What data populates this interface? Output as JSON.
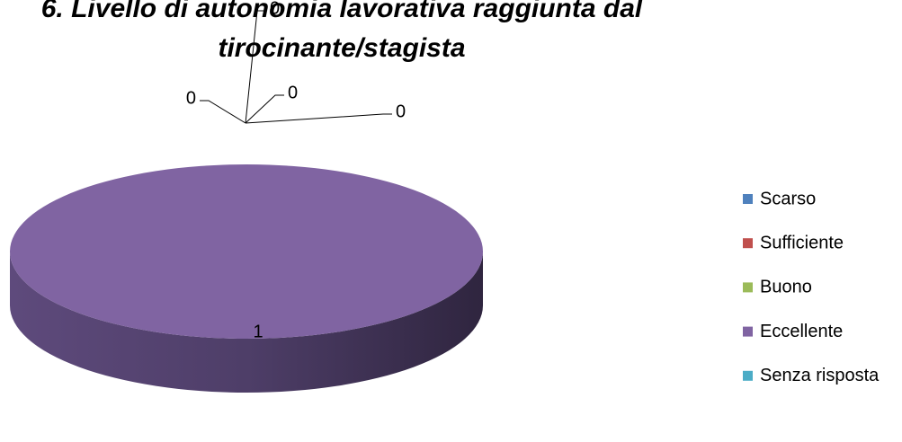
{
  "chart_data": {
    "type": "pie3d",
    "title": "6. Livello di autonomia lavorativa raggiunta dal tirocinante/stagista",
    "categories": [
      "Scarso",
      "Sufficiente",
      "Buono",
      "Eccellente",
      "Senza risposta"
    ],
    "values": [
      0,
      0,
      0,
      1,
      0
    ],
    "colors": [
      "#4f81bd",
      "#c0504d",
      "#9bbb59",
      "#8064a2",
      "#4bacc6"
    ],
    "legend": "right"
  }
}
